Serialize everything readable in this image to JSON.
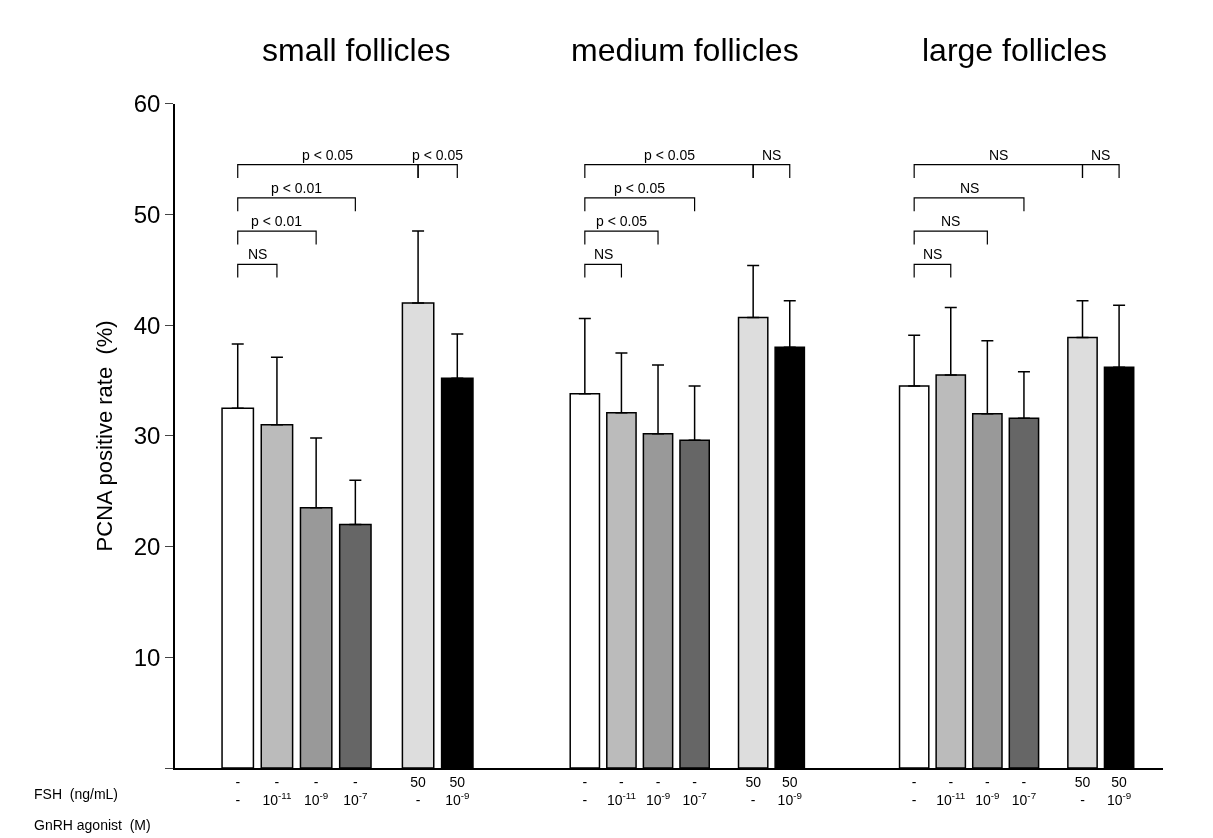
{
  "chart_data": [
    {
      "type": "bar",
      "title": "small follicles",
      "ylabel": "PCNA positive rate  (%)",
      "categories": [
        "-\n-",
        "-\n10$^{-11}$",
        "-\n10$^{-9}$",
        "-\n10$^{-7}$",
        "50\n-",
        "50\n10$^{-9}$"
      ],
      "values": [
        32.5,
        31,
        23.5,
        22,
        42,
        35.2
      ],
      "errors": [
        [
          32.5,
          38.3
        ],
        [
          31,
          37.1
        ],
        [
          23.5,
          29.8
        ],
        [
          22,
          26
        ],
        [
          42,
          48.5
        ],
        [
          35.2,
          39.2
        ]
      ],
      "colors": [
        "#ffffff",
        "#bbbbbb",
        "#999999",
        "#666666",
        "#dddddd",
        "#000000"
      ],
      "ylim": [
        0,
        60
      ],
      "yticks": [
        {
          "value": 0,
          "label": null
        },
        10,
        20,
        30,
        40,
        50,
        60
      ],
      "annotations": [
        "NS",
        "p < 0.01",
        "p < 0.01",
        "p < 0.05",
        "p < 0.05",
        "FSH  (ng/mL)",
        "GnRH agonist  (M)"
      ]
    },
    {
      "type": "bar",
      "title": "medium follicles",
      "categories": [
        "-\n-",
        "-\n10$^{-11}$",
        "-\n10$^{-9}$",
        "-\n10$^{-7}$",
        "50\n-",
        "50\n10$^{-9}$"
      ],
      "values": [
        33.8,
        32.1,
        30.2,
        29.6,
        40.7,
        38
      ],
      "errors": [
        [
          33.8,
          40.6
        ],
        [
          32.1,
          37.5
        ],
        [
          30.2,
          36.4
        ],
        [
          29.6,
          34.5
        ],
        [
          40.7,
          45.4
        ],
        [
          38,
          42.2
        ]
      ],
      "colors": [
        "#ffffff",
        "#bbbbbb",
        "#999999",
        "#666666",
        "#dddddd",
        "#000000"
      ],
      "ylim": [
        0,
        60
      ],
      "tick_labels": "x",
      "annotations": [
        "NS",
        "p < 0.05",
        "p < 0.05",
        "p < 0.05",
        "NS"
      ]
    },
    {
      "type": "bar",
      "title": "large follicles",
      "categories": [
        "-\n-",
        "-\n10$^{-11}$",
        "-\n10$^{-9}$",
        "-\n10$^{-7}$",
        "50\n-",
        "50\n10$^{-9}$"
      ],
      "values": [
        34.5,
        35.5,
        32,
        31.6,
        38.9,
        36.2
      ],
      "errors": [
        [
          34.5,
          39.1
        ],
        [
          35.5,
          41.6
        ],
        [
          32,
          38.6
        ],
        [
          31.6,
          35.8
        ],
        [
          38.9,
          42.2
        ],
        [
          36.2,
          41.8
        ]
      ],
      "colors": [
        "#ffffff",
        "#bbbbbb",
        "#999999",
        "#666666",
        "#dddddd",
        "#000000"
      ],
      "ylim": [
        0,
        60
      ],
      "tick_labels": "x",
      "annotations": [
        "NS",
        "NS",
        "NS",
        "NS",
        "NS"
      ]
    }
  ]
}
